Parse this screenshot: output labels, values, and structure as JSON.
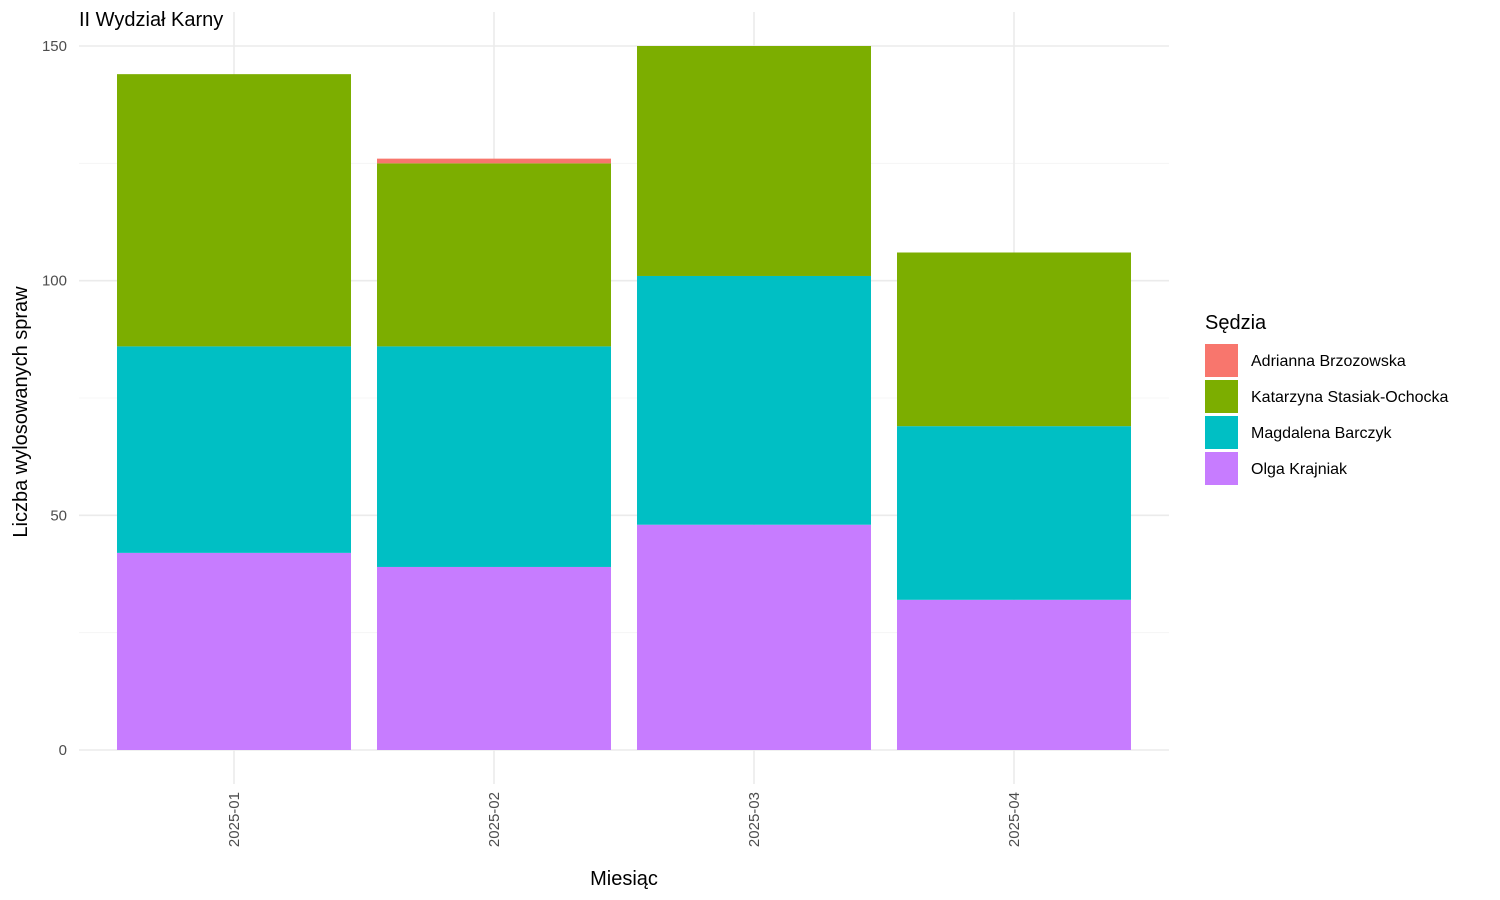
{
  "chart_data": {
    "type": "bar",
    "stacked": true,
    "title": "II Wydział Karny",
    "xlabel": "Miesiąc",
    "ylabel": "Liczba wylosowanych spraw",
    "categories": [
      "2025-01",
      "2025-02",
      "2025-03",
      "2025-04"
    ],
    "ylim": [
      0,
      150
    ],
    "yticks": [
      0,
      50,
      100,
      150
    ],
    "grid": true,
    "legend": {
      "title": "Sędzia",
      "position": "right"
    },
    "series": [
      {
        "name": "Olga Krajniak",
        "color": "#C77CFF",
        "values": [
          42,
          39,
          48,
          32
        ]
      },
      {
        "name": "Magdalena Barczyk",
        "color": "#00BFC4",
        "values": [
          44,
          47,
          53,
          37
        ]
      },
      {
        "name": "Katarzyna Stasiak-Ochocka",
        "color": "#7CAE00",
        "values": [
          58,
          39,
          49,
          37
        ]
      },
      {
        "name": "Adrianna Brzozowska",
        "color": "#F8766D",
        "values": [
          0,
          1,
          0,
          0
        ]
      }
    ],
    "legend_order": [
      "Adrianna Brzozowska",
      "Katarzyna Stasiak-Ochocka",
      "Magdalena Barczyk",
      "Olga Krajniak"
    ]
  }
}
